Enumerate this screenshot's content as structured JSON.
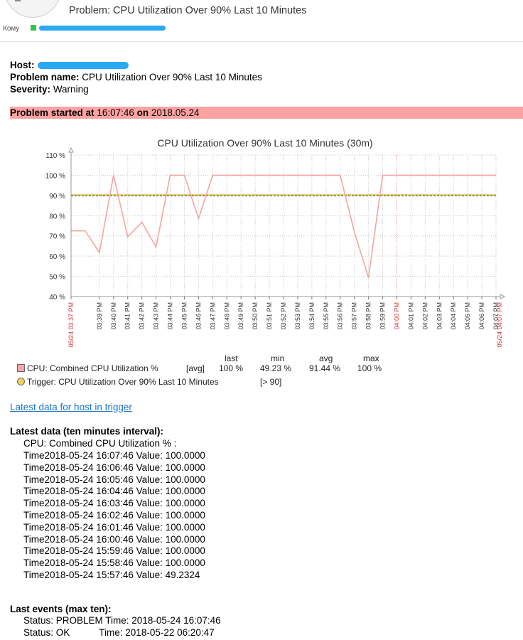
{
  "email": {
    "subject": "Problem: CPU Utilization Over 90% Last 10 Minutes",
    "to_label": "Кому"
  },
  "alert": {
    "host_label": "Host:",
    "problem_name_label": "Problem name:",
    "problem_name": "CPU Utilization Over 90% Last 10 Minutes",
    "severity_label": "Severity:",
    "severity": "Warning",
    "banner": {
      "started_label": "Problem started at",
      "time": "16:07:46",
      "on_label": "on",
      "date": "2018.05.24"
    }
  },
  "chart_data": {
    "type": "line",
    "title": "CPU Utilization Over 90% Last 10 Minutes (30m)",
    "ylim": [
      40,
      110
    ],
    "y_ticks": [
      "110 %",
      "100 %",
      "90 %",
      "80 %",
      "70 %",
      "60 %",
      "50 %",
      "40 %"
    ],
    "x_start_label": "05/24 03:37 PM",
    "x_end_label": "05/24 04:07 PM",
    "x_ticks": [
      "03:39 PM",
      "03:40 PM",
      "03:41 PM",
      "03:42 PM",
      "03:43 PM",
      "03:44 PM",
      "03:45 PM",
      "03:46 PM",
      "03:47 PM",
      "03:48 PM",
      "03:49 PM",
      "03:50 PM",
      "03:51 PM",
      "03:52 PM",
      "03:53 PM",
      "03:54 PM",
      "03:55 PM",
      "03:56 PM",
      "03:57 PM",
      "03:58 PM",
      "03:59 PM",
      "04:00 PM",
      "04:01 PM",
      "04:02 PM",
      "04:03 PM",
      "04:04 PM",
      "04:05 PM",
      "04:06 PM",
      "04:07 PM"
    ],
    "highlight_ticks": [
      "04:00 PM"
    ],
    "x_start": "2018-05-24 15:37",
    "x_end": "2018-05-24 16:07",
    "series": [
      {
        "name": "CPU: Combined CPU Utilization %",
        "color": "#f4a4a4",
        "points": [
          [
            "2018-05-24 15:37",
            72.5
          ],
          [
            "2018-05-24 15:38",
            72.5
          ],
          [
            "2018-05-24 15:39",
            61.7
          ],
          [
            "2018-05-24 15:40",
            100
          ],
          [
            "2018-05-24 15:41",
            69.5
          ],
          [
            "2018-05-24 15:42",
            76.8
          ],
          [
            "2018-05-24 15:43",
            64.5
          ],
          [
            "2018-05-24 15:44",
            100
          ],
          [
            "2018-05-24 15:45",
            100
          ],
          [
            "2018-05-24 15:46",
            78.5
          ],
          [
            "2018-05-24 15:47",
            100
          ],
          [
            "2018-05-24 15:48",
            100
          ],
          [
            "2018-05-24 15:49",
            100
          ],
          [
            "2018-05-24 15:50",
            100
          ],
          [
            "2018-05-24 15:51",
            100
          ],
          [
            "2018-05-24 15:52",
            100
          ],
          [
            "2018-05-24 15:53",
            100
          ],
          [
            "2018-05-24 15:54",
            100
          ],
          [
            "2018-05-24 15:55",
            100
          ],
          [
            "2018-05-24 15:56",
            100
          ],
          [
            "2018-05-24 15:57",
            72
          ],
          [
            "2018-05-24 15:58",
            49.2
          ],
          [
            "2018-05-24 15:59",
            100
          ],
          [
            "2018-05-24 16:00",
            100
          ],
          [
            "2018-05-24 16:01",
            100
          ],
          [
            "2018-05-24 16:02",
            100
          ],
          [
            "2018-05-24 16:03",
            100
          ],
          [
            "2018-05-24 16:04",
            100
          ],
          [
            "2018-05-24 16:05",
            100
          ],
          [
            "2018-05-24 16:06",
            100
          ],
          [
            "2018-05-24 16:07",
            100
          ]
        ]
      }
    ],
    "trigger": {
      "name": "Trigger: CPU Utilization Over 90% Last 10 Minutes",
      "value": 90,
      "condition": "[> 90]",
      "color": "#e8c84a"
    },
    "stats": {
      "headers": [
        "last",
        "min",
        "avg",
        "max"
      ],
      "cpu_func": "[avg]",
      "values": [
        "100 %",
        "49.23 %",
        "91.44 %",
        "100 %"
      ]
    },
    "grid": true
  },
  "latest_data_link": "Latest data for host in trigger",
  "latest_data": {
    "title": "Latest data (ten minutes interval):",
    "item_name": "CPU: Combined CPU Utilization % :",
    "rows": [
      "Time2018-05-24 16:07:46 Value: 100.0000",
      "Time2018-05-24 16:06:46 Value: 100.0000",
      "Time2018-05-24 16:05:46 Value: 100.0000",
      "Time2018-05-24 16:04:46 Value: 100.0000",
      "Time2018-05-24 16:03:46 Value: 100.0000",
      "Time2018-05-24 16:02:46 Value: 100.0000",
      "Time2018-05-24 16:01:46 Value: 100.0000",
      "Time2018-05-24 16:00:46 Value: 100.0000",
      "Time2018-05-24 15:59:46 Value: 100.0000",
      "Time2018-05-24 15:58:46 Value: 100.0000",
      "Time2018-05-24 15:57:46 Value: 49.2324"
    ]
  },
  "last_events": {
    "title": "Last events (max ten):",
    "rows": [
      "Status: PROBLEM Time: 2018-05-24 16:07:46",
      "Status: OK           Time: 2018-05-22 06:20:47"
    ]
  }
}
